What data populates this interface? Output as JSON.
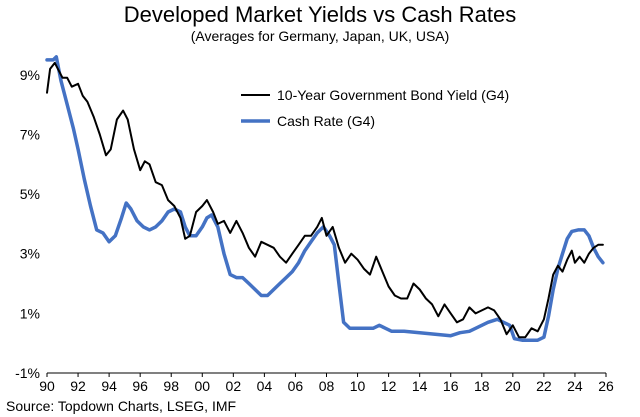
{
  "chart_data": {
    "type": "line",
    "title": "Developed Market Yields vs Cash Rates",
    "subtitle": "(Averages for Germany, Japan, UK, USA)",
    "source": "Source: Topdown Charts, LSEG, IMF",
    "xlabel": "",
    "ylabel": "",
    "xlim": [
      1990,
      2026
    ],
    "ylim": [
      -1,
      10
    ],
    "y_ticks": [
      -1,
      1,
      3,
      5,
      7,
      9
    ],
    "y_tick_labels": [
      "-1%",
      "1%",
      "3%",
      "5%",
      "7%",
      "9%"
    ],
    "x_ticks": [
      1990,
      1992,
      1994,
      1996,
      1998,
      2000,
      2002,
      2004,
      2006,
      2008,
      2010,
      2012,
      2014,
      2016,
      2018,
      2020,
      2022,
      2024,
      2026
    ],
    "x_tick_labels": [
      "90",
      "92",
      "94",
      "96",
      "98",
      "00",
      "02",
      "04",
      "06",
      "08",
      "10",
      "12",
      "14",
      "16",
      "18",
      "20",
      "22",
      "24",
      "26"
    ],
    "grid": false,
    "legend_position": "top-right",
    "series": [
      {
        "name": "10-Year Government Bond Yield (G4)",
        "color": "#000000",
        "points": [
          [
            1990.0,
            8.4
          ],
          [
            1990.2,
            9.2
          ],
          [
            1990.5,
            9.4
          ],
          [
            1990.8,
            9.1
          ],
          [
            1991.0,
            8.9
          ],
          [
            1991.3,
            8.9
          ],
          [
            1991.6,
            8.6
          ],
          [
            1992.0,
            8.7
          ],
          [
            1992.3,
            8.3
          ],
          [
            1992.6,
            8.1
          ],
          [
            1993.0,
            7.6
          ],
          [
            1993.4,
            7.0
          ],
          [
            1993.8,
            6.3
          ],
          [
            1994.1,
            6.5
          ],
          [
            1994.5,
            7.5
          ],
          [
            1994.9,
            7.8
          ],
          [
            1995.2,
            7.5
          ],
          [
            1995.6,
            6.5
          ],
          [
            1996.0,
            5.8
          ],
          [
            1996.3,
            6.1
          ],
          [
            1996.6,
            6.0
          ],
          [
            1997.0,
            5.4
          ],
          [
            1997.4,
            5.3
          ],
          [
            1997.8,
            4.8
          ],
          [
            1998.2,
            4.6
          ],
          [
            1998.6,
            4.2
          ],
          [
            1998.9,
            3.5
          ],
          [
            1999.2,
            3.6
          ],
          [
            1999.6,
            4.4
          ],
          [
            2000.0,
            4.6
          ],
          [
            2000.3,
            4.8
          ],
          [
            2000.7,
            4.4
          ],
          [
            2001.0,
            4.0
          ],
          [
            2001.4,
            4.1
          ],
          [
            2001.8,
            3.7
          ],
          [
            2002.2,
            4.1
          ],
          [
            2002.6,
            3.7
          ],
          [
            2003.0,
            3.2
          ],
          [
            2003.4,
            2.9
          ],
          [
            2003.8,
            3.4
          ],
          [
            2004.2,
            3.3
          ],
          [
            2004.6,
            3.2
          ],
          [
            2005.0,
            2.9
          ],
          [
            2005.4,
            2.7
          ],
          [
            2005.8,
            3.0
          ],
          [
            2006.2,
            3.3
          ],
          [
            2006.6,
            3.6
          ],
          [
            2007.0,
            3.6
          ],
          [
            2007.4,
            3.9
          ],
          [
            2007.7,
            4.2
          ],
          [
            2008.0,
            3.6
          ],
          [
            2008.4,
            3.9
          ],
          [
            2008.8,
            3.2
          ],
          [
            2009.2,
            2.7
          ],
          [
            2009.6,
            3.0
          ],
          [
            2010.0,
            2.8
          ],
          [
            2010.4,
            2.5
          ],
          [
            2010.8,
            2.3
          ],
          [
            2011.2,
            2.9
          ],
          [
            2011.6,
            2.4
          ],
          [
            2012.0,
            1.9
          ],
          [
            2012.4,
            1.6
          ],
          [
            2012.8,
            1.5
          ],
          [
            2013.2,
            1.5
          ],
          [
            2013.6,
            2.0
          ],
          [
            2014.0,
            1.8
          ],
          [
            2014.4,
            1.5
          ],
          [
            2014.8,
            1.3
          ],
          [
            2015.2,
            0.9
          ],
          [
            2015.6,
            1.3
          ],
          [
            2016.0,
            1.0
          ],
          [
            2016.4,
            0.7
          ],
          [
            2016.8,
            0.8
          ],
          [
            2017.2,
            1.2
          ],
          [
            2017.6,
            1.0
          ],
          [
            2018.0,
            1.1
          ],
          [
            2018.4,
            1.2
          ],
          [
            2018.8,
            1.1
          ],
          [
            2019.2,
            0.8
          ],
          [
            2019.6,
            0.3
          ],
          [
            2020.0,
            0.6
          ],
          [
            2020.4,
            0.2
          ],
          [
            2020.8,
            0.2
          ],
          [
            2021.2,
            0.5
          ],
          [
            2021.6,
            0.4
          ],
          [
            2022.0,
            0.8
          ],
          [
            2022.3,
            1.5
          ],
          [
            2022.6,
            2.3
          ],
          [
            2022.9,
            2.6
          ],
          [
            2023.2,
            2.4
          ],
          [
            2023.5,
            2.8
          ],
          [
            2023.8,
            3.1
          ],
          [
            2024.0,
            2.7
          ],
          [
            2024.3,
            2.9
          ],
          [
            2024.6,
            2.7
          ],
          [
            2024.9,
            3.0
          ],
          [
            2025.2,
            3.2
          ],
          [
            2025.5,
            3.3
          ],
          [
            2025.8,
            3.3
          ]
        ]
      },
      {
        "name": "Cash Rate (G4)",
        "color": "#4472C4",
        "points": [
          [
            1990.0,
            9.5
          ],
          [
            1990.4,
            9.5
          ],
          [
            1990.6,
            9.6
          ],
          [
            1990.9,
            8.8
          ],
          [
            1991.3,
            8.0
          ],
          [
            1991.7,
            7.2
          ],
          [
            1992.0,
            6.5
          ],
          [
            1992.4,
            5.5
          ],
          [
            1992.8,
            4.6
          ],
          [
            1993.2,
            3.8
          ],
          [
            1993.6,
            3.7
          ],
          [
            1994.0,
            3.4
          ],
          [
            1994.4,
            3.6
          ],
          [
            1994.8,
            4.2
          ],
          [
            1995.1,
            4.7
          ],
          [
            1995.4,
            4.5
          ],
          [
            1995.8,
            4.1
          ],
          [
            1996.2,
            3.9
          ],
          [
            1996.6,
            3.8
          ],
          [
            1997.0,
            3.9
          ],
          [
            1997.4,
            4.1
          ],
          [
            1997.8,
            4.4
          ],
          [
            1998.2,
            4.5
          ],
          [
            1998.6,
            4.4
          ],
          [
            1998.9,
            3.9
          ],
          [
            1999.2,
            3.6
          ],
          [
            1999.6,
            3.6
          ],
          [
            2000.0,
            3.9
          ],
          [
            2000.3,
            4.2
          ],
          [
            2000.6,
            4.3
          ],
          [
            2001.0,
            3.9
          ],
          [
            2001.4,
            3.0
          ],
          [
            2001.8,
            2.3
          ],
          [
            2002.2,
            2.2
          ],
          [
            2002.6,
            2.2
          ],
          [
            2003.0,
            2.0
          ],
          [
            2003.4,
            1.8
          ],
          [
            2003.8,
            1.6
          ],
          [
            2004.2,
            1.6
          ],
          [
            2004.6,
            1.8
          ],
          [
            2005.0,
            2.0
          ],
          [
            2005.4,
            2.2
          ],
          [
            2005.8,
            2.4
          ],
          [
            2006.2,
            2.7
          ],
          [
            2006.6,
            3.1
          ],
          [
            2007.0,
            3.4
          ],
          [
            2007.4,
            3.7
          ],
          [
            2007.8,
            3.9
          ],
          [
            2008.2,
            3.6
          ],
          [
            2008.5,
            3.3
          ],
          [
            2008.8,
            2.0
          ],
          [
            2009.1,
            0.7
          ],
          [
            2009.5,
            0.5
          ],
          [
            2010.0,
            0.5
          ],
          [
            2010.5,
            0.5
          ],
          [
            2011.0,
            0.5
          ],
          [
            2011.4,
            0.6
          ],
          [
            2011.8,
            0.5
          ],
          [
            2012.2,
            0.4
          ],
          [
            2013.0,
            0.4
          ],
          [
            2014.0,
            0.35
          ],
          [
            2015.0,
            0.3
          ],
          [
            2016.0,
            0.25
          ],
          [
            2016.6,
            0.35
          ],
          [
            2017.2,
            0.4
          ],
          [
            2017.8,
            0.55
          ],
          [
            2018.4,
            0.7
          ],
          [
            2019.0,
            0.8
          ],
          [
            2019.4,
            0.7
          ],
          [
            2019.8,
            0.6
          ],
          [
            2020.1,
            0.15
          ],
          [
            2020.6,
            0.1
          ],
          [
            2021.0,
            0.1
          ],
          [
            2021.6,
            0.1
          ],
          [
            2022.0,
            0.2
          ],
          [
            2022.3,
            0.9
          ],
          [
            2022.6,
            1.8
          ],
          [
            2022.9,
            2.5
          ],
          [
            2023.2,
            3.0
          ],
          [
            2023.5,
            3.5
          ],
          [
            2023.8,
            3.75
          ],
          [
            2024.2,
            3.8
          ],
          [
            2024.6,
            3.8
          ],
          [
            2024.9,
            3.6
          ],
          [
            2025.2,
            3.2
          ],
          [
            2025.5,
            2.9
          ],
          [
            2025.8,
            2.7
          ]
        ]
      }
    ]
  }
}
